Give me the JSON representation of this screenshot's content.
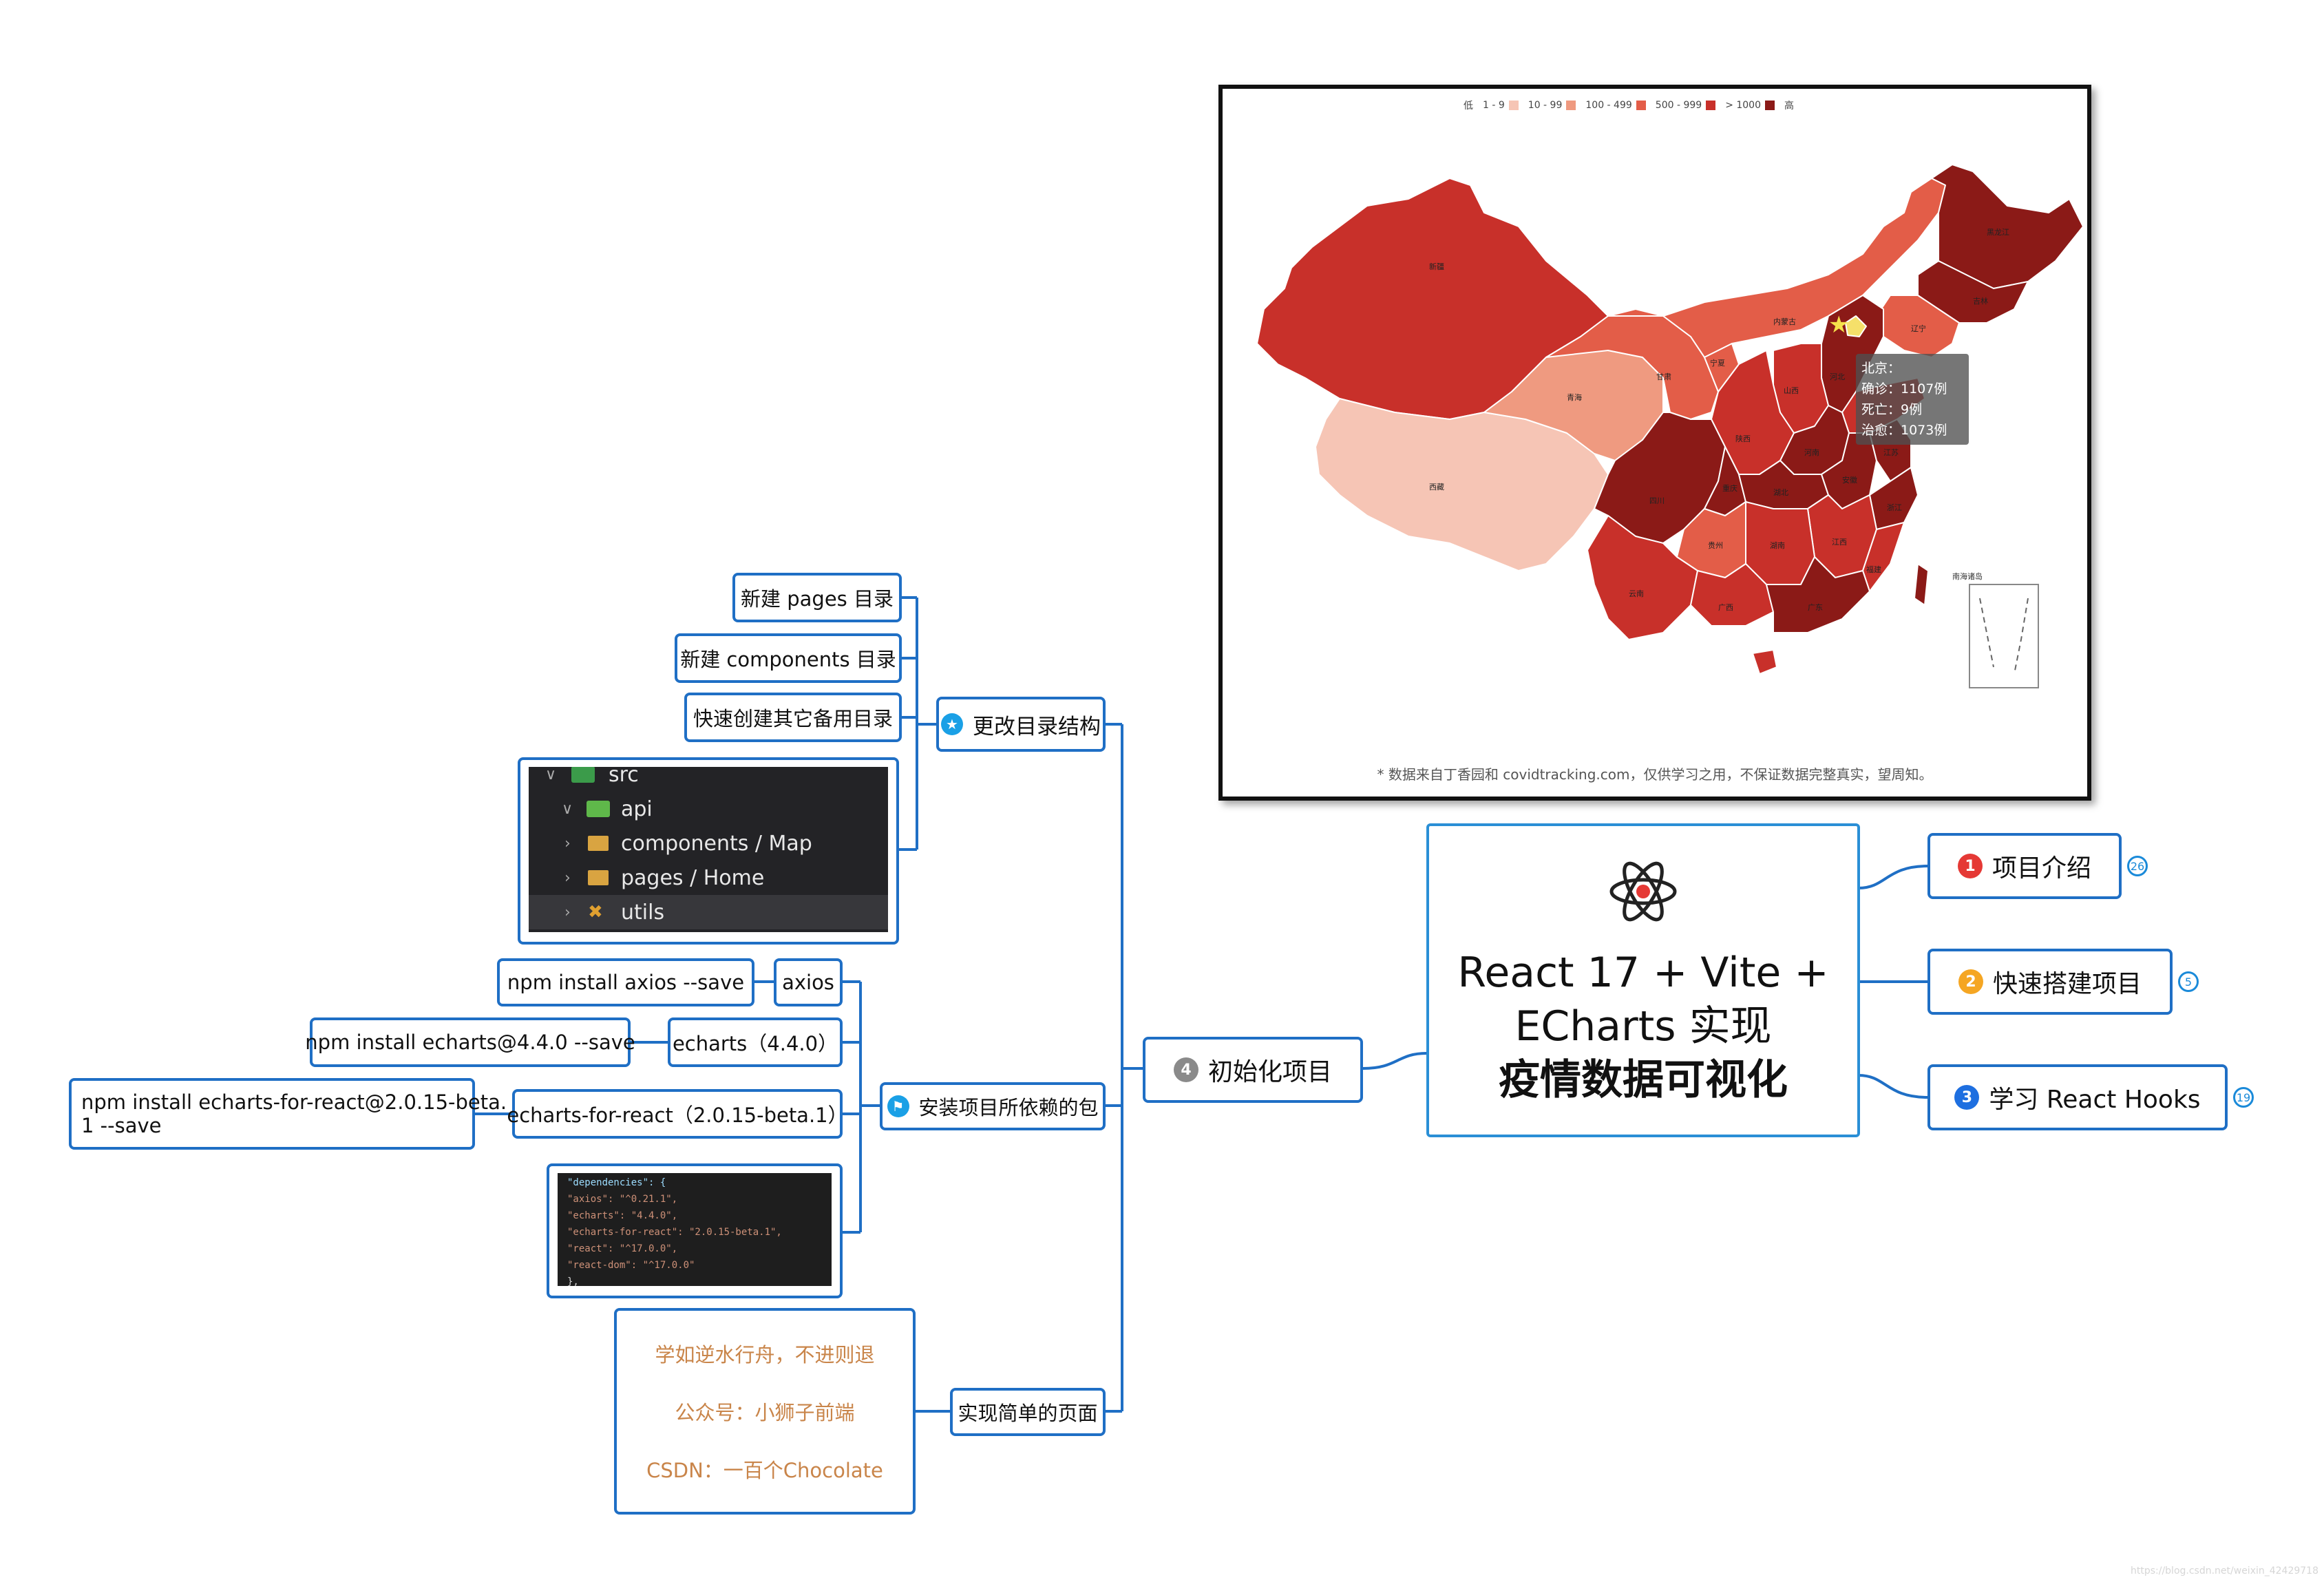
{
  "root": {
    "title_lines": [
      "React 17 + Vite +",
      "ECharts 实现",
      "疫情数据可视化"
    ]
  },
  "right_branches": [
    {
      "num": "1",
      "label": "项目介绍",
      "count": "26",
      "color": "#e53935"
    },
    {
      "num": "2",
      "label": "快速搭建项目",
      "count": "5",
      "color": "#f5a623"
    },
    {
      "num": "3",
      "label": "学习 React Hooks",
      "count": "19",
      "color": "#1e6fe0"
    }
  ],
  "left_branch": {
    "num": "4",
    "label": "初始化项目",
    "color": "#8a8a8a"
  },
  "sections": {
    "dir": {
      "label": "更改目录结构",
      "leaves": [
        "新建 pages 目录",
        "新建 components 目录",
        "快速创建其它备用目录"
      ],
      "tree": [
        "src",
        "api",
        "components / Map",
        "pages / Home",
        "utils"
      ]
    },
    "deps": {
      "label": "安装项目所依赖的包",
      "packages": [
        {
          "name": "axios",
          "cmd": "npm install axios --save"
        },
        {
          "name": "echarts（4.4.0）",
          "cmd": "npm install echarts@4.4.0 --save"
        },
        {
          "name": "echarts-for-react（2.0.15-beta.1）",
          "cmd_lines": [
            "npm install echarts-for-react@2.0.15-beta.",
            "1 --save"
          ]
        }
      ],
      "code_lines": [
        "\"dependencies\": {",
        "  \"axios\": \"^0.21.1\",",
        "  \"echarts\": \"4.4.0\",",
        "  \"echarts-for-react\": \"2.0.15-beta.1\",",
        "  \"react\": \"^17.0.0\",",
        "  \"react-dom\": \"^17.0.0\"",
        "},"
      ]
    },
    "page": {
      "label": "实现简单的页面",
      "note_lines": [
        "学如逆水行舟，不进则退",
        "公众号：小狮子前端",
        "CSDN：一百个Chocolate"
      ]
    }
  },
  "map": {
    "legend": {
      "low": "低",
      "high": "高",
      "ranges": [
        "1 - 9",
        "10 - 99",
        "100 - 499",
        "500 - 999",
        "> 1000"
      ]
    },
    "legend_colors": [
      "#f6c5b5",
      "#ef9a80",
      "#e35d48",
      "#c8302a",
      "#8b1a17"
    ],
    "tooltip": [
      "北京：",
      "确诊：1107例",
      "死亡：9例",
      "治愈：1073例"
    ],
    "footnote": "* 数据来自丁香园和 covidtracking.com，仅供学习之用，不保证数据完整真实，望周知。",
    "inset_label": "南海诸岛",
    "provinces": [
      "新疆",
      "西藏",
      "青海",
      "甘肃",
      "内蒙古",
      "黑龙江",
      "吉林",
      "辽宁",
      "宁夏",
      "陕西",
      "山西",
      "河北",
      "山东",
      "河南",
      "四川",
      "重庆",
      "湖北",
      "安徽",
      "江苏",
      "浙江",
      "江西",
      "湖南",
      "贵州",
      "云南",
      "广西",
      "广东",
      "福建"
    ]
  },
  "watermark": "https://blog.csdn.net/weixin_42429718"
}
